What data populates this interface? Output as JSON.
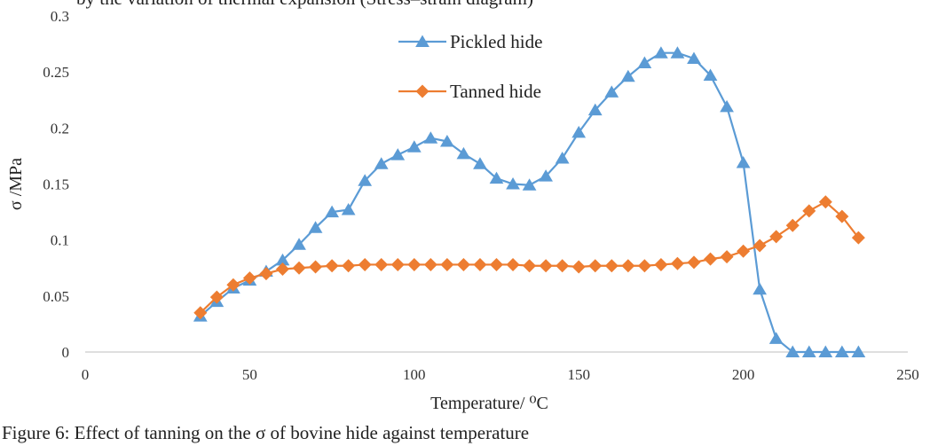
{
  "top_text": "by the variation of thermal expansion (Stress–strain diagram) ",
  "caption": "Figure 6: Effect of tanning on  the σ of bovine hide against temperature",
  "chart_data": {
    "type": "line",
    "title": "",
    "xlabel": "Temperature/ ⁰C",
    "ylabel": "σ /MPa",
    "xlim": [
      0,
      250
    ],
    "ylim": [
      0,
      0.3
    ],
    "x_ticks": [
      0,
      50,
      100,
      150,
      200,
      250
    ],
    "y_ticks": [
      0,
      0.05,
      0.1,
      0.15,
      0.2,
      0.25,
      0.3
    ],
    "y_tick_labels": [
      "0",
      "0.05",
      "0.1",
      "0.15",
      "0.2",
      "0.25",
      "0.3"
    ],
    "grid": false,
    "legend_position": "top-center",
    "series": [
      {
        "name": "Pickled hide",
        "color": "#5b9bd5",
        "marker": "triangle",
        "x": [
          35,
          40,
          45,
          50,
          55,
          60,
          65,
          70,
          75,
          80,
          85,
          90,
          95,
          100,
          105,
          110,
          115,
          120,
          125,
          130,
          135,
          140,
          145,
          150,
          155,
          160,
          165,
          170,
          175,
          180,
          185,
          190,
          195,
          200,
          205,
          210,
          215,
          220,
          225,
          230,
          235
        ],
        "y": [
          0.032,
          0.045,
          0.057,
          0.064,
          0.072,
          0.082,
          0.096,
          0.111,
          0.125,
          0.127,
          0.153,
          0.168,
          0.176,
          0.183,
          0.191,
          0.188,
          0.177,
          0.168,
          0.155,
          0.15,
          0.149,
          0.157,
          0.173,
          0.196,
          0.216,
          0.232,
          0.246,
          0.258,
          0.267,
          0.267,
          0.262,
          0.247,
          0.219,
          0.169,
          0.056,
          0.012,
          0.0,
          0.0,
          0.0,
          0.0,
          0.0
        ]
      },
      {
        "name": "Tanned hide",
        "color": "#ed7d31",
        "marker": "diamond",
        "x": [
          35,
          40,
          45,
          50,
          55,
          60,
          65,
          70,
          75,
          80,
          85,
          90,
          95,
          100,
          105,
          110,
          115,
          120,
          125,
          130,
          135,
          140,
          145,
          150,
          155,
          160,
          165,
          170,
          175,
          180,
          185,
          190,
          195,
          200,
          205,
          210,
          215,
          220,
          225,
          230,
          235
        ],
        "y": [
          0.035,
          0.049,
          0.06,
          0.066,
          0.07,
          0.074,
          0.075,
          0.076,
          0.077,
          0.077,
          0.078,
          0.078,
          0.078,
          0.078,
          0.078,
          0.078,
          0.078,
          0.078,
          0.078,
          0.078,
          0.077,
          0.077,
          0.077,
          0.076,
          0.077,
          0.077,
          0.077,
          0.077,
          0.078,
          0.079,
          0.08,
          0.083,
          0.085,
          0.09,
          0.095,
          0.103,
          0.113,
          0.126,
          0.134,
          0.121,
          0.102
        ]
      }
    ]
  }
}
